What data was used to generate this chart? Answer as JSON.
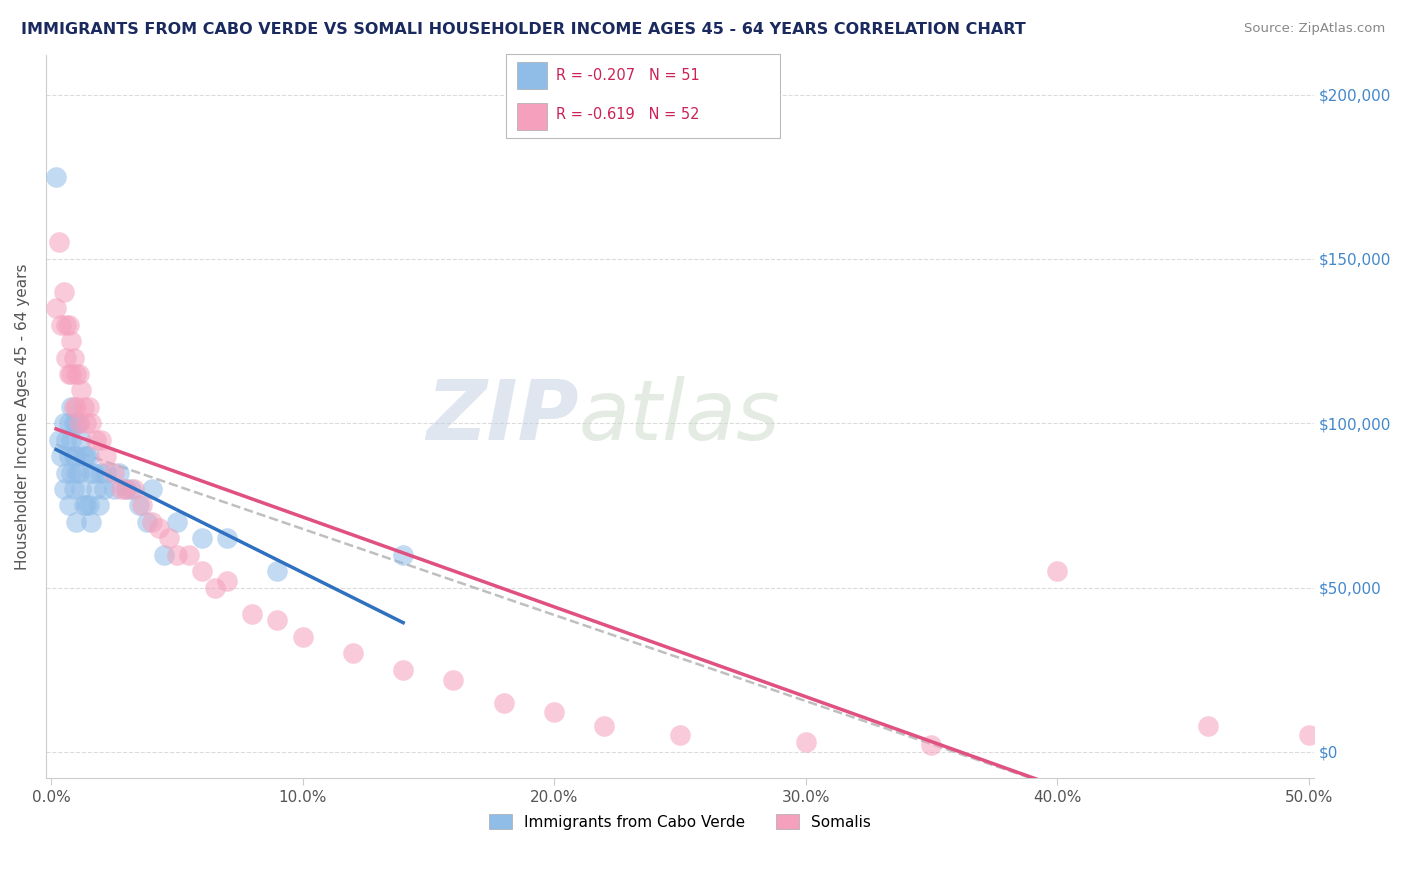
{
  "title": "IMMIGRANTS FROM CABO VERDE VS SOMALI HOUSEHOLDER INCOME AGES 45 - 64 YEARS CORRELATION CHART",
  "source": "Source: ZipAtlas.com",
  "ylabel": "Householder Income Ages 45 - 64 years",
  "xlim": [
    -0.002,
    0.502
  ],
  "ylim": [
    -8000,
    212000
  ],
  "xticks": [
    0.0,
    0.1,
    0.2,
    0.3,
    0.4,
    0.5
  ],
  "xticklabels": [
    "0.0%",
    "10.0%",
    "20.0%",
    "30.0%",
    "40.0%",
    "50.0%"
  ],
  "yticks": [
    0,
    50000,
    100000,
    150000,
    200000
  ],
  "watermark_zip": "ZIP",
  "watermark_atlas": "atlas",
  "cabo_verde_color": "#90bce8",
  "somali_color": "#f5a0bc",
  "cabo_verde_line_color": "#3070c0",
  "somali_line_color": "#e05080",
  "trend_line_color": "#b8b8b8",
  "cabo_verde_x": [
    0.002,
    0.003,
    0.004,
    0.005,
    0.005,
    0.006,
    0.006,
    0.007,
    0.007,
    0.007,
    0.008,
    0.008,
    0.008,
    0.009,
    0.009,
    0.009,
    0.01,
    0.01,
    0.01,
    0.01,
    0.011,
    0.011,
    0.012,
    0.012,
    0.013,
    0.013,
    0.014,
    0.014,
    0.015,
    0.015,
    0.016,
    0.016,
    0.017,
    0.018,
    0.019,
    0.02,
    0.021,
    0.022,
    0.025,
    0.027,
    0.03,
    0.032,
    0.035,
    0.038,
    0.04,
    0.045,
    0.05,
    0.06,
    0.07,
    0.09,
    0.14
  ],
  "cabo_verde_y": [
    175000,
    95000,
    90000,
    100000,
    80000,
    95000,
    85000,
    100000,
    90000,
    75000,
    105000,
    95000,
    85000,
    100000,
    90000,
    80000,
    100000,
    90000,
    85000,
    70000,
    100000,
    85000,
    95000,
    80000,
    90000,
    75000,
    90000,
    75000,
    90000,
    75000,
    85000,
    70000,
    85000,
    80000,
    75000,
    85000,
    80000,
    85000,
    80000,
    85000,
    80000,
    80000,
    75000,
    70000,
    80000,
    60000,
    70000,
    65000,
    65000,
    55000,
    60000
  ],
  "somali_x": [
    0.002,
    0.003,
    0.004,
    0.005,
    0.006,
    0.006,
    0.007,
    0.007,
    0.008,
    0.008,
    0.009,
    0.009,
    0.01,
    0.01,
    0.011,
    0.011,
    0.012,
    0.013,
    0.014,
    0.015,
    0.016,
    0.018,
    0.02,
    0.022,
    0.025,
    0.028,
    0.03,
    0.033,
    0.036,
    0.04,
    0.043,
    0.047,
    0.05,
    0.055,
    0.06,
    0.065,
    0.07,
    0.08,
    0.09,
    0.1,
    0.12,
    0.14,
    0.16,
    0.18,
    0.2,
    0.22,
    0.25,
    0.3,
    0.35,
    0.4,
    0.46,
    0.5
  ],
  "somali_y": [
    135000,
    155000,
    130000,
    140000,
    130000,
    120000,
    130000,
    115000,
    125000,
    115000,
    120000,
    105000,
    115000,
    105000,
    115000,
    100000,
    110000,
    105000,
    100000,
    105000,
    100000,
    95000,
    95000,
    90000,
    85000,
    80000,
    80000,
    80000,
    75000,
    70000,
    68000,
    65000,
    60000,
    60000,
    55000,
    50000,
    52000,
    42000,
    40000,
    35000,
    30000,
    25000,
    22000,
    15000,
    12000,
    8000,
    5000,
    3000,
    2000,
    55000,
    8000,
    5000
  ]
}
